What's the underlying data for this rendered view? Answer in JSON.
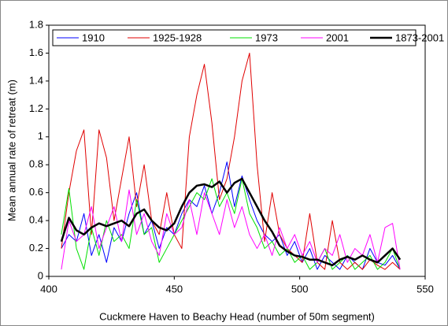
{
  "chart_data": {
    "type": "line",
    "xlabel": "Cuckmere Haven to Beachy Head (number of 50m segment)",
    "ylabel": "Mean annual rate of retreat (m)",
    "x": [
      405,
      408,
      411,
      414,
      417,
      420,
      423,
      426,
      429,
      432,
      435,
      438,
      441,
      444,
      447,
      450,
      453,
      456,
      459,
      462,
      465,
      468,
      471,
      474,
      477,
      480,
      483,
      486,
      489,
      492,
      495,
      498,
      501,
      504,
      507,
      510,
      513,
      516,
      519,
      522,
      525,
      528,
      531,
      534,
      537,
      540
    ],
    "series": [
      {
        "name": "1910",
        "color": "#0000ff",
        "width": 1,
        "values": [
          0.2,
          0.3,
          0.25,
          0.45,
          0.15,
          0.3,
          0.1,
          0.35,
          0.25,
          0.45,
          0.6,
          0.3,
          0.4,
          0.2,
          0.35,
          0.3,
          0.45,
          0.55,
          0.5,
          0.65,
          0.45,
          0.6,
          0.82,
          0.5,
          0.72,
          0.55,
          0.4,
          0.3,
          0.25,
          0.3,
          0.15,
          0.25,
          0.1,
          0.2,
          0.05,
          0.15,
          0.1,
          0.05,
          0.15,
          0.1,
          0.05,
          0.2,
          0.1,
          0.08,
          0.15,
          0.05
        ]
      },
      {
        "name": "1925-1928",
        "color": "#e00000",
        "width": 1,
        "values": [
          0.2,
          0.6,
          0.9,
          1.05,
          0.3,
          1.05,
          0.85,
          0.4,
          0.7,
          1.0,
          0.5,
          0.8,
          0.4,
          0.3,
          0.6,
          0.3,
          0.2,
          1.0,
          1.3,
          1.52,
          1.1,
          0.55,
          0.7,
          1.0,
          1.4,
          1.6,
          0.8,
          0.25,
          0.6,
          0.3,
          0.2,
          0.15,
          0.1,
          0.45,
          0.1,
          0.05,
          0.4,
          0.1,
          0.05,
          0.1,
          0.05,
          0.12,
          0.08,
          0.05,
          0.1,
          0.05
        ]
      },
      {
        "name": "1973",
        "color": "#00e000",
        "width": 1,
        "values": [
          0.3,
          0.63,
          0.2,
          0.05,
          0.35,
          0.15,
          0.4,
          0.25,
          0.3,
          0.2,
          0.55,
          0.3,
          0.35,
          0.1,
          0.2,
          0.3,
          0.4,
          0.5,
          0.6,
          0.55,
          0.7,
          0.5,
          0.6,
          0.45,
          0.7,
          0.45,
          0.35,
          0.2,
          0.25,
          0.15,
          0.2,
          0.1,
          0.15,
          0.05,
          0.1,
          0.2,
          0.05,
          0.1,
          0.15,
          0.05,
          0.1,
          0.15,
          0.05,
          0.1,
          0.2,
          0.05
        ]
      },
      {
        "name": "2001",
        "color": "#ff00ff",
        "width": 1,
        "values": [
          0.05,
          0.4,
          0.25,
          0.3,
          0.5,
          0.2,
          0.35,
          0.5,
          0.25,
          0.62,
          0.3,
          0.45,
          0.25,
          0.15,
          0.45,
          0.3,
          0.35,
          0.55,
          0.3,
          0.6,
          0.45,
          0.3,
          0.55,
          0.35,
          0.5,
          0.3,
          0.2,
          0.3,
          0.15,
          0.35,
          0.2,
          0.3,
          0.15,
          0.25,
          0.1,
          0.2,
          0.15,
          0.3,
          0.1,
          0.2,
          0.15,
          0.3,
          0.1,
          0.35,
          0.38,
          0.05
        ]
      },
      {
        "name": "1873-2001",
        "color": "#000000",
        "width": 2.5,
        "values": [
          0.25,
          0.42,
          0.33,
          0.3,
          0.35,
          0.38,
          0.36,
          0.38,
          0.4,
          0.36,
          0.45,
          0.48,
          0.4,
          0.35,
          0.33,
          0.38,
          0.5,
          0.6,
          0.65,
          0.66,
          0.64,
          0.68,
          0.6,
          0.67,
          0.7,
          0.6,
          0.5,
          0.4,
          0.32,
          0.22,
          0.18,
          0.15,
          0.14,
          0.12,
          0.12,
          0.1,
          0.08,
          0.12,
          0.14,
          0.12,
          0.15,
          0.12,
          0.1,
          0.15,
          0.2,
          0.12
        ]
      }
    ],
    "xlim": [
      400,
      550
    ],
    "xticks": [
      400,
      450,
      500,
      550
    ],
    "ylim": [
      0,
      1.8
    ],
    "yticks": [
      0,
      0.2,
      0.4,
      0.6,
      0.8,
      1,
      1.2,
      1.4,
      1.6,
      1.8
    ],
    "legend": "top"
  }
}
